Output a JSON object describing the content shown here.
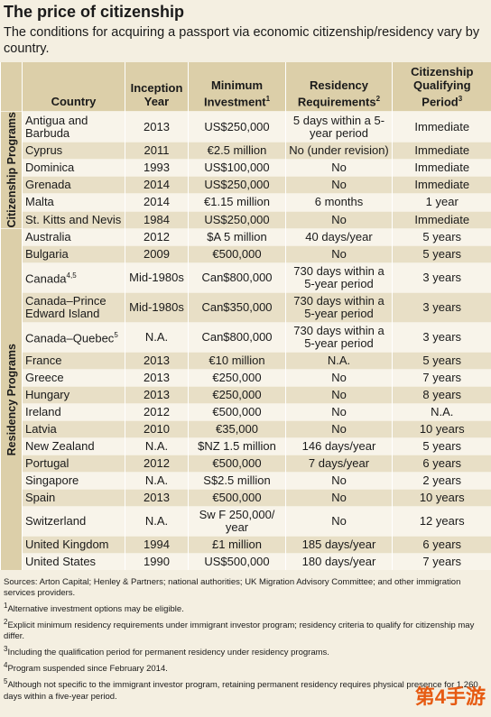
{
  "header": {
    "title": "The price of citizenship",
    "subtitle": "The conditions for acquiring a passport via economic citizenship/residency vary by country."
  },
  "table": {
    "columns": [
      {
        "label": "Country"
      },
      {
        "label": "Inception Year"
      },
      {
        "label": "Minimum Investment",
        "note": "1"
      },
      {
        "label": "Residency Requirements",
        "note": "2"
      },
      {
        "label": "Citizenship Qualifying Period",
        "note": "3"
      }
    ],
    "groups": [
      {
        "label": "Citizenship Programs",
        "rows": [
          {
            "cells": [
              "Antigua and Barbuda",
              "2013",
              "US$250,000",
              "5 days within a 5-year period",
              "Immediate"
            ]
          },
          {
            "cells": [
              "Cyprus",
              "2011",
              "€2.5 million",
              "No (under revision)",
              "Immediate"
            ]
          },
          {
            "cells": [
              "Dominica",
              "1993",
              "US$100,000",
              "No",
              "Immediate"
            ]
          },
          {
            "cells": [
              "Grenada",
              "2014",
              "US$250,000",
              "No",
              "Immediate"
            ]
          },
          {
            "cells": [
              "Malta",
              "2014",
              "€1.15 million",
              "6 months",
              "1 year"
            ]
          },
          {
            "cells": [
              "St. Kitts and Nevis",
              "1984",
              "US$250,000",
              "No",
              "Immediate"
            ]
          }
        ]
      },
      {
        "label": "Residency Programs",
        "rows": [
          {
            "cells": [
              "Australia",
              "2012",
              "$A 5 million",
              "40 days/year",
              "5 years"
            ]
          },
          {
            "cells": [
              "Bulgaria",
              "2009",
              "€500,000",
              "No",
              "5 years"
            ]
          },
          {
            "cells": [
              "Canada",
              "Mid-1980s",
              "Can$800,000",
              "730 days within a 5-year period",
              "3 years"
            ],
            "note": "4,5"
          },
          {
            "cells": [
              "Canada–Prince Edward Island",
              "Mid-1980s",
              "Can$350,000",
              "730 days within a 5-year period",
              "3 years"
            ]
          },
          {
            "cells": [
              "Canada–Quebec",
              "N.A.",
              "Can$800,000",
              "730 days within a 5-year period",
              "3 years"
            ],
            "note": "5"
          },
          {
            "cells": [
              "France",
              "2013",
              "€10 million",
              "N.A.",
              "5 years"
            ]
          },
          {
            "cells": [
              "Greece",
              "2013",
              "€250,000",
              "No",
              "7 years"
            ]
          },
          {
            "cells": [
              "Hungary",
              "2013",
              "€250,000",
              "No",
              "8 years"
            ]
          },
          {
            "cells": [
              "Ireland",
              "2012",
              "€500,000",
              "No",
              "N.A."
            ]
          },
          {
            "cells": [
              "Latvia",
              "2010",
              "€35,000",
              "No",
              "10 years"
            ]
          },
          {
            "cells": [
              "New Zealand",
              "N.A.",
              "$NZ 1.5 million",
              "146 days/year",
              "5 years"
            ]
          },
          {
            "cells": [
              "Portugal",
              "2012",
              "€500,000",
              "7 days/year",
              "6 years"
            ]
          },
          {
            "cells": [
              "Singapore",
              "N.A.",
              "S$2.5 million",
              "No",
              "2 years"
            ]
          },
          {
            "cells": [
              "Spain",
              "2013",
              "€500,000",
              "No",
              "10 years"
            ]
          },
          {
            "cells": [
              "Switzerland",
              "N.A.",
              "Sw F 250,000/ year",
              "No",
              "12 years"
            ]
          },
          {
            "cells": [
              "United Kingdom",
              "1994",
              "£1 million",
              "185 days/year",
              "6 years"
            ]
          },
          {
            "cells": [
              "United States",
              "1990",
              "US$500,000",
              "180 days/year",
              "7 years"
            ]
          }
        ]
      }
    ]
  },
  "footer": {
    "sources": "Sources: Arton Capital; Henley & Partners; national authorities; UK Migration Advisory Committee; and other immigration services providers.",
    "notes": [
      {
        "mark": "1",
        "text": "Alternative investment options may be eligible."
      },
      {
        "mark": "2",
        "text": "Explicit minimum residency requirements under immigrant investor program; residency criteria to qualify for citizenship may differ."
      },
      {
        "mark": "3",
        "text": "Including the qualification period for permanent residency under residency programs."
      },
      {
        "mark": "4",
        "text": "Program suspended since February 2014."
      },
      {
        "mark": "5",
        "text": "Although not specific to the immigrant investor program, retaining permanent residency requires physical presence for 1,260 days within a five-year period."
      }
    ]
  },
  "watermark": "第4手游"
}
